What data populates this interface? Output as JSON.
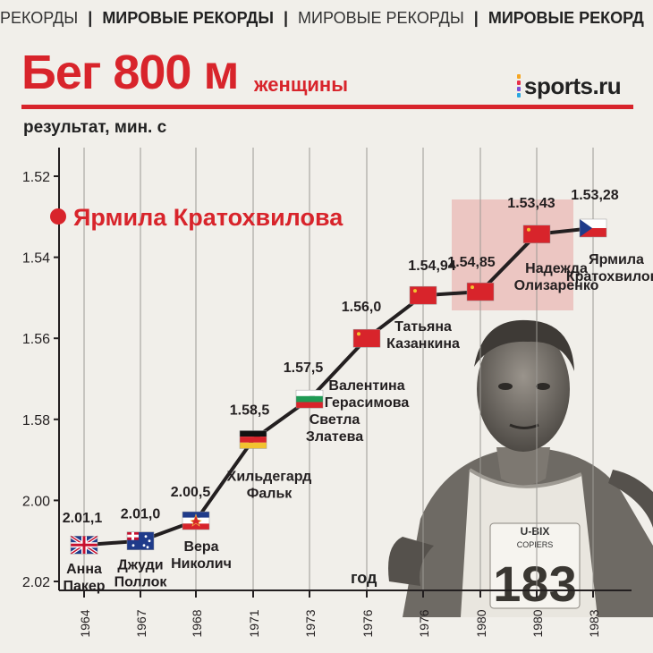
{
  "ticker": [
    "РЕКОРДЫ",
    "МИРОВЫЕ РЕКОРДЫ",
    "МИРОВЫЕ РЕКОРДЫ",
    "МИРОВЫЕ РЕКОРД"
  ],
  "header": {
    "title": "Бег 800 м",
    "subtitle": "женщины",
    "logo": "sports.ru"
  },
  "colors": {
    "accent": "#d8242b",
    "line": "#231f20",
    "highlight": "#e9b8b4"
  },
  "highlight_athlete": "Ярмила Кратохвилова",
  "chart_data": {
    "type": "line",
    "ylabel": "результат, мин. с",
    "xlabel": "год",
    "y_inverted": true,
    "ylim_seconds": [
      112,
      122
    ],
    "y_ticks": [
      {
        "label": "1.52",
        "seconds": 112
      },
      {
        "label": "1.54",
        "seconds": 114
      },
      {
        "label": "1.56",
        "seconds": 116
      },
      {
        "label": "1.58",
        "seconds": 118
      },
      {
        "label": "2.00",
        "seconds": 120
      },
      {
        "label": "2.02",
        "seconds": 122
      }
    ],
    "x_ticks": [
      "1964",
      "1967",
      "1968",
      "1971",
      "1973",
      "1976",
      "1976",
      "1980",
      "1980",
      "1983"
    ],
    "grid": "vertical",
    "points": [
      {
        "year": "1964",
        "result": "2.01,1",
        "seconds": 121.1,
        "athlete": [
          "Анна",
          "Пакер"
        ],
        "flag": "gb-flag"
      },
      {
        "year": "1967",
        "result": "2.01,0",
        "seconds": 121.0,
        "athlete": [
          "Джуди",
          "Поллок"
        ],
        "flag": "au-flag"
      },
      {
        "year": "1968",
        "result": "2.00,5",
        "seconds": 120.5,
        "athlete": [
          "Вера",
          "Николич"
        ],
        "flag": "yu-flag"
      },
      {
        "year": "1971",
        "result": "1.58,5",
        "seconds": 118.5,
        "athlete": [
          "Хильдегард",
          "Фальк"
        ],
        "flag": "de-flag"
      },
      {
        "year": "1973",
        "result": "1.57,5",
        "seconds": 117.5,
        "athlete": [
          "Светла",
          "Златева"
        ],
        "flag": "bg-flag"
      },
      {
        "year": "1976",
        "result": "1.56,0",
        "seconds": 116.0,
        "athlete": [
          "Валентина",
          "Герасимова"
        ],
        "flag": "su-flag"
      },
      {
        "year": "1976",
        "result": "1.54,94",
        "seconds": 114.94,
        "athlete": [
          "Татьяна",
          "Казанкина"
        ],
        "flag": "su-flag"
      },
      {
        "year": "1980",
        "result": "1.54,85",
        "seconds": 114.85,
        "athlete": [],
        "flag": "su-flag"
      },
      {
        "year": "1980",
        "result": "1.53,43",
        "seconds": 113.43,
        "athlete": [
          "Надежда",
          "Олизаренко"
        ],
        "flag": "su-flag"
      },
      {
        "year": "1983",
        "result": "1.53,28",
        "seconds": 113.28,
        "athlete": [
          "Ярмила",
          "Кратохвилова"
        ],
        "flag": "cz-flag"
      }
    ]
  }
}
